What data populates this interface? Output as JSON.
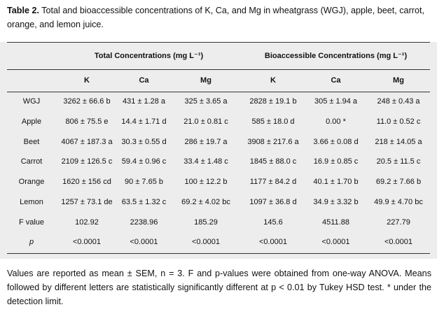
{
  "caption": {
    "label": "Table 2.",
    "text": "Total and bioaccessible concentrations of K, Ca, and Mg in wheatgrass (WGJ), apple, beet, carrot, orange, and lemon juice."
  },
  "table": {
    "group_headers": [
      "Total Concentrations (mg L⁻¹)",
      "Bioaccessible Concentrations (mg L⁻¹)"
    ],
    "column_headers": [
      "K",
      "Ca",
      "Mg",
      "K",
      "Ca",
      "Mg"
    ],
    "rows": [
      {
        "label": "WGJ",
        "values": [
          "3262 ± 66.6 b",
          "431 ± 1.28 a",
          "325 ± 3.65 a",
          "2828 ± 19.1 b",
          "305 ± 1.94 a",
          "248 ± 0.43 a"
        ]
      },
      {
        "label": "Apple",
        "values": [
          "806 ± 75.5 e",
          "14.4 ± 1.71 d",
          "21.0 ± 0.81 c",
          "585 ± 18.0 d",
          "0.00 *",
          "11.0 ± 0.52 c"
        ]
      },
      {
        "label": "Beet",
        "values": [
          "4067 ± 187.3 a",
          "30.3 ± 0.55 d",
          "286 ± 19.7 a",
          "3908 ± 217.6 a",
          "3.66 ± 0.08 d",
          "218 ± 14.05 a"
        ]
      },
      {
        "label": "Carrot",
        "values": [
          "2109 ± 126.5 c",
          "59.4 ± 0.96 c",
          "33.4 ± 1.48 c",
          "1845 ± 88.0 c",
          "16.9 ± 0.85 c",
          "20.5 ± 11.5 c"
        ]
      },
      {
        "label": "Orange",
        "values": [
          "1620 ± 156 cd",
          "90 ± 7.65 b",
          "100 ± 12.2 b",
          "1177 ± 84.2 d",
          "40.1 ± 1.70 b",
          "69.2 ± 7.66 b"
        ]
      },
      {
        "label": "Lemon",
        "values": [
          "1257 ± 73.1 de",
          "63.5 ± 1.32 c",
          "69.2 ± 4.02 bc",
          "1097 ± 36.8 d",
          "34.9 ± 3.32 b",
          "49.9 ± 4.70 bc"
        ]
      },
      {
        "label": "F value",
        "values": [
          "102.92",
          "2238.96",
          "185.29",
          "145.6",
          "4511.88",
          "227.79"
        ]
      },
      {
        "label": "p",
        "values": [
          "<0.0001",
          "<0.0001",
          "<0.0001",
          "<0.0001",
          "<0.0001",
          "<0.0001"
        ]
      }
    ]
  },
  "footnote": "Values are reported as mean ± SEM, n = 3. F and p-values were obtained from one-way ANOVA. Means followed by different letters are statistically significantly different at p < 0.01 by Tukey HSD test. * under the detection limit."
}
